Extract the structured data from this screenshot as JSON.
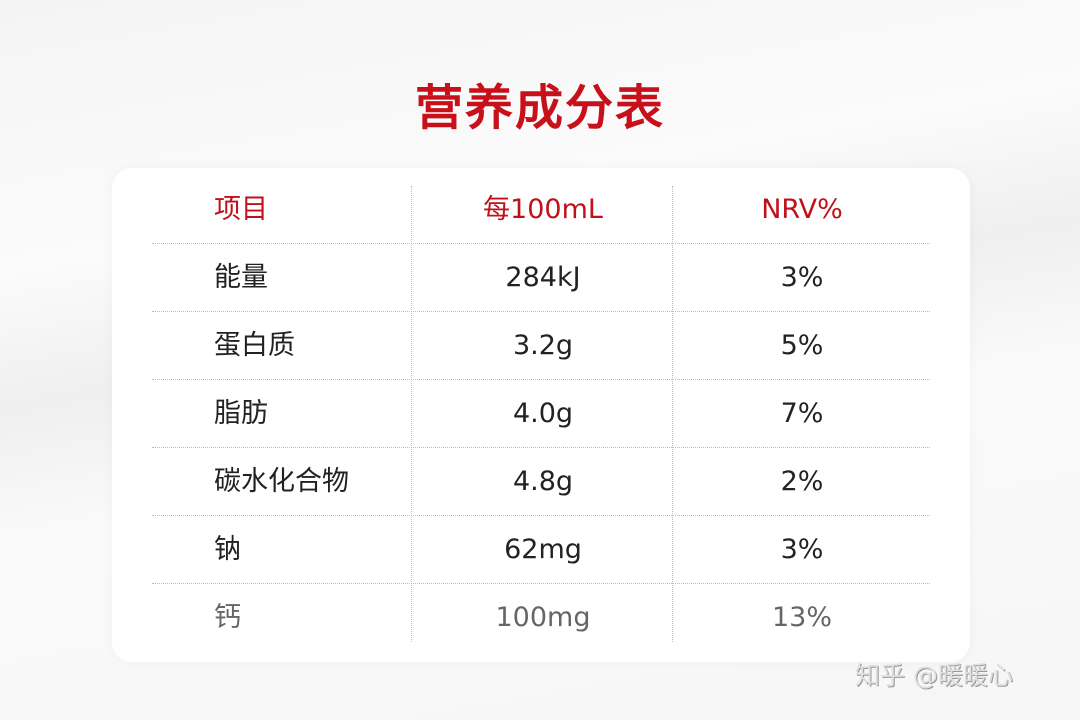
{
  "title": "营养成分表",
  "table": {
    "headers": [
      "项目",
      "每100mL",
      "NRV%"
    ],
    "rows": [
      [
        "能量",
        "284kJ",
        "3%"
      ],
      [
        "蛋白质",
        "3.2g",
        "5%"
      ],
      [
        "脂肪",
        "4.0g",
        "7%"
      ],
      [
        "碳水化合物",
        "4.8g",
        "2%"
      ],
      [
        "钠",
        "62mg",
        "3%"
      ],
      [
        "钙",
        "100mg",
        "13%"
      ]
    ]
  },
  "watermark": "知乎 @暖暖心",
  "colors": {
    "accent": "#c8101a"
  }
}
